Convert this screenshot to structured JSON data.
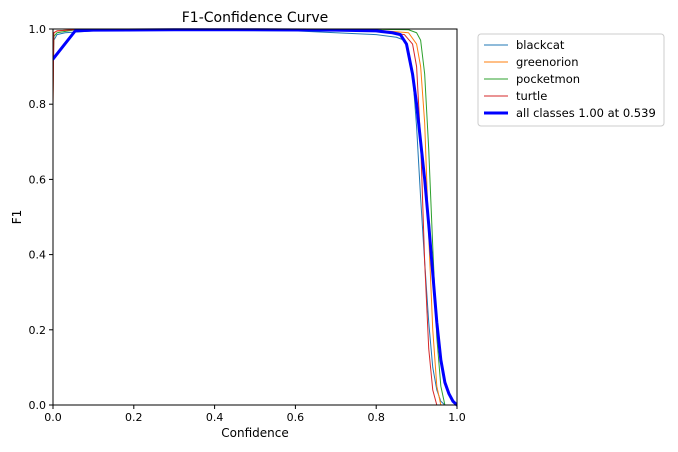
{
  "chart_data": {
    "type": "line",
    "title": "F1-Confidence Curve",
    "xlabel": "Confidence",
    "ylabel": "F1",
    "xlim": [
      0.0,
      1.0
    ],
    "ylim": [
      0.0,
      1.0
    ],
    "xticks": [
      0.0,
      0.2,
      0.4,
      0.6,
      0.8,
      1.0
    ],
    "yticks": [
      0.0,
      0.2,
      0.4,
      0.6,
      0.8,
      1.0
    ],
    "xtick_labels": [
      "0.0",
      "0.2",
      "0.4",
      "0.6",
      "0.8",
      "1.0"
    ],
    "ytick_labels": [
      "0.0",
      "0.2",
      "0.4",
      "0.6",
      "0.8",
      "1.0"
    ],
    "grid": false,
    "legend_position": "outside-right-top",
    "series": [
      {
        "name": "blackcat",
        "color": "#1f77b4",
        "width": 1,
        "x": [
          0.0,
          0.002,
          0.01,
          0.03,
          0.1,
          0.3,
          0.6,
          0.7,
          0.8,
          0.85,
          0.87,
          0.88,
          0.89,
          0.9,
          0.91,
          0.92,
          0.93,
          0.94,
          0.95,
          0.96,
          0.97
        ],
        "y": [
          0.83,
          0.97,
          0.985,
          0.99,
          0.995,
          0.997,
          0.995,
          0.99,
          0.985,
          0.978,
          0.97,
          0.94,
          0.88,
          0.74,
          0.55,
          0.38,
          0.22,
          0.1,
          0.04,
          0.01,
          0.0
        ]
      },
      {
        "name": "greenorion",
        "color": "#ff7f0e",
        "width": 1,
        "x": [
          0.0,
          0.002,
          0.01,
          0.05,
          0.3,
          0.6,
          0.8,
          0.88,
          0.9,
          0.91,
          0.92,
          0.93,
          0.94,
          0.95,
          0.96
        ],
        "y": [
          0.8,
          0.99,
          0.995,
          0.998,
          0.999,
          0.998,
          0.997,
          0.99,
          0.96,
          0.9,
          0.75,
          0.45,
          0.2,
          0.05,
          0.0
        ]
      },
      {
        "name": "pocketmon",
        "color": "#2ca02c",
        "width": 1,
        "x": [
          0.0,
          0.002,
          0.01,
          0.05,
          0.3,
          0.6,
          0.8,
          0.88,
          0.9,
          0.91,
          0.92,
          0.93,
          0.94,
          0.95,
          0.96,
          0.97
        ],
        "y": [
          0.9,
          0.98,
          0.99,
          0.997,
          0.999,
          0.999,
          0.999,
          0.998,
          0.99,
          0.97,
          0.88,
          0.68,
          0.42,
          0.18,
          0.05,
          0.0
        ]
      },
      {
        "name": "turtle",
        "color": "#d62728",
        "width": 1,
        "x": [
          0.0,
          0.002,
          0.01,
          0.05,
          0.3,
          0.6,
          0.8,
          0.87,
          0.89,
          0.9,
          0.91,
          0.92,
          0.93,
          0.94,
          0.95
        ],
        "y": [
          0.8,
          0.99,
          0.995,
          0.998,
          0.999,
          0.998,
          0.995,
          0.985,
          0.96,
          0.9,
          0.7,
          0.38,
          0.15,
          0.04,
          0.0
        ]
      },
      {
        "name": "all classes 1.00 at 0.539",
        "color": "#0000ff",
        "width": 3,
        "x": [
          0.0,
          0.055,
          0.1,
          0.3,
          0.5,
          0.7,
          0.8,
          0.84,
          0.86,
          0.875,
          0.89,
          0.9,
          0.91,
          0.92,
          0.93,
          0.94,
          0.95,
          0.96,
          0.97,
          0.98,
          0.99,
          1.0
        ],
        "y": [
          0.92,
          0.995,
          0.997,
          0.998,
          0.998,
          0.997,
          0.995,
          0.99,
          0.985,
          0.96,
          0.88,
          0.8,
          0.7,
          0.6,
          0.48,
          0.35,
          0.22,
          0.12,
          0.06,
          0.03,
          0.01,
          0.0
        ]
      }
    ]
  }
}
